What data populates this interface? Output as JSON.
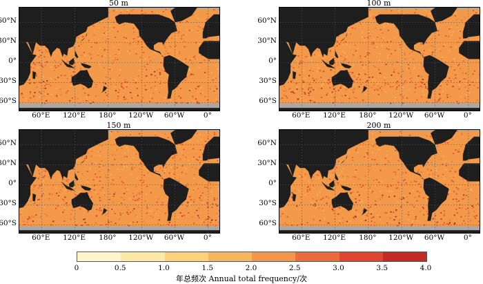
{
  "panels": [
    {
      "title": "50 m"
    },
    {
      "title": "100 m"
    },
    {
      "title": "150 m"
    },
    {
      "title": "200 m"
    }
  ],
  "lat_labels": [
    "60°N",
    "30°N",
    "0°",
    "30°S",
    "60°S"
  ],
  "lon_labels": [
    "60°E",
    "120°E",
    "180°",
    "120°W",
    "60°W",
    "0°"
  ],
  "colorbar": {
    "ticks": [
      "0",
      "0.5",
      "1.0",
      "1.5",
      "2.0",
      "2.5",
      "3.0",
      "3.5",
      "4.0"
    ],
    "colors": [
      "#fff6cc",
      "#fde9a3",
      "#fbd27a",
      "#f8b65c",
      "#f4954a",
      "#ec6b3c",
      "#e0452f",
      "#c52a26",
      "#9a1e1e"
    ],
    "title": "年总频次 Annual total frequency/次"
  },
  "colors": {
    "land": "#1e1e1e",
    "ice": "#a8a8a8",
    "ocean_base": "#f39a4a"
  }
}
